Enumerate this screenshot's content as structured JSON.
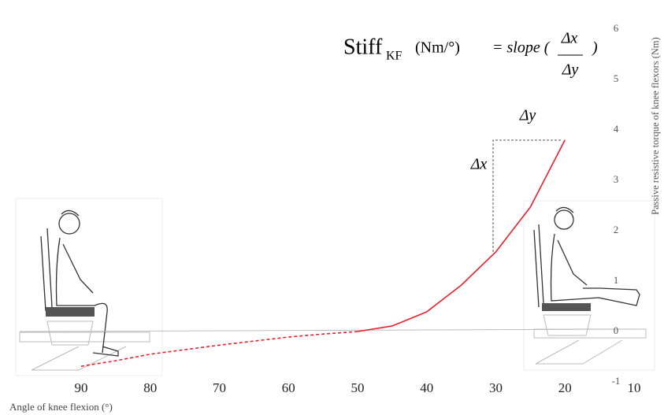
{
  "chart_data": {
    "type": "line",
    "formula": {
      "stiff": "Stiff",
      "subscript": "KF",
      "unit": "(Nm/°)",
      "equals": "= slope (",
      "numerator": "Δx",
      "denominator": "Δy",
      "close": ")"
    },
    "annotations": {
      "dx": "Δx",
      "dy": "Δy"
    },
    "x_label": "Angle of knee flexion (°)",
    "y_label": "Passive resistive torque of knee flexors (Nm)",
    "x": [
      90,
      85,
      80,
      70,
      60,
      55,
      50,
      45,
      40,
      35,
      30,
      25,
      20
    ],
    "series": [
      {
        "color": "#e8202a",
        "dashed": true,
        "values": [
          -0.69,
          -0.58,
          -0.45,
          -0.27,
          -0.11,
          -0.05,
          0,
          null,
          null,
          null,
          null,
          null,
          null
        ]
      },
      {
        "color": "#e8202a",
        "dashed": false,
        "values": [
          null,
          null,
          null,
          null,
          null,
          null,
          0,
          0.11,
          0.39,
          0.92,
          1.58,
          2.47,
          3.8
        ]
      }
    ],
    "xlim": [
      90,
      10
    ],
    "xticks": [
      90,
      80,
      70,
      60,
      50,
      40,
      30,
      20,
      10
    ],
    "ylim": [
      -1,
      6
    ],
    "yticks": [
      -1,
      0,
      1,
      2,
      3,
      4,
      5,
      6
    ]
  }
}
